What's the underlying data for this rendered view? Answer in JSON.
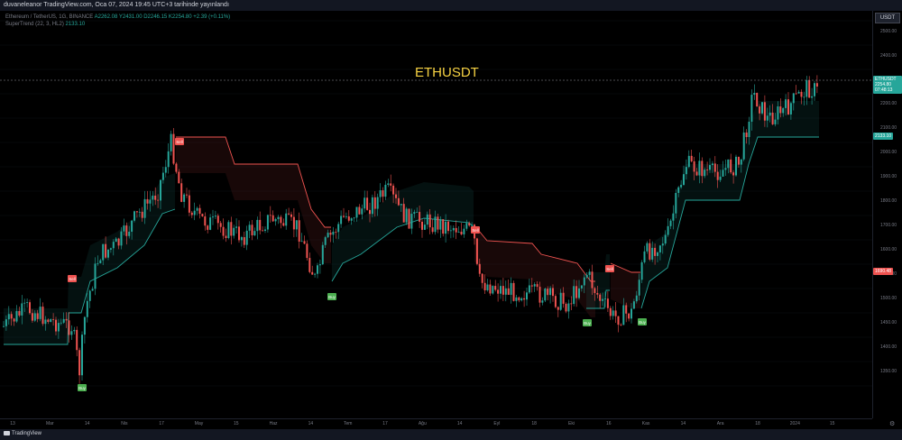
{
  "topbar": {
    "text": "duvaneleanor TradingView.com, Oca 07, 2024 19:45 UTC+3 tarihinde yayınlandı"
  },
  "legend": {
    "line1": "Ethereum / TetherUS, 1G, BINANCE",
    "line1_values": "A2262.08  Y2431.00  D2246.15  K2254.80  +2.39 (+0.11%)",
    "line2": "SuperTrend (22, 3, HL2)",
    "line2_value": "2133.10"
  },
  "symbol_title": "ETHUSDT",
  "yaxis": {
    "unit": "USDT",
    "ticks": [
      "2500.00",
      "2400.00",
      "2300.00",
      "2200.00",
      "2100.00",
      "2000.00",
      "1900.00",
      "1800.00",
      "1700.00",
      "1600.00",
      "1550.00",
      "1500.00",
      "1450.00",
      "1400.00",
      "1350.00"
    ],
    "price_labels": [
      {
        "text": "ETHUSDT 2254.80 07:48:13",
        "color": "#26a69a"
      },
      {
        "text": "2133.10",
        "color": "#26a69a"
      },
      {
        "text": "1690.48",
        "color": "#ef5350"
      }
    ]
  },
  "xaxis": {
    "ticks": [
      "13",
      "Mar",
      "14",
      "Nis",
      "17",
      "May",
      "15",
      "Haz",
      "14",
      "Tem",
      "17",
      "Ağu",
      "14",
      "Eyl",
      "18",
      "Eki",
      "16",
      "Kas",
      "14",
      "Ara",
      "18",
      "2024",
      "15"
    ]
  },
  "signals": [
    {
      "label": "Sell",
      "type": "sell"
    },
    {
      "label": "Buy",
      "type": "buy"
    },
    {
      "label": "Sell",
      "type": "sell"
    },
    {
      "label": "Buy",
      "type": "buy"
    },
    {
      "label": "Sell",
      "type": "sell"
    },
    {
      "label": "Buy",
      "type": "buy"
    },
    {
      "label": "Sell",
      "type": "sell"
    },
    {
      "label": "Buy",
      "type": "buy"
    }
  ],
  "footer": {
    "brand": "TradingView"
  },
  "colors": {
    "up": "#26a69a",
    "down": "#ef5350",
    "title": "#f5d142"
  }
}
